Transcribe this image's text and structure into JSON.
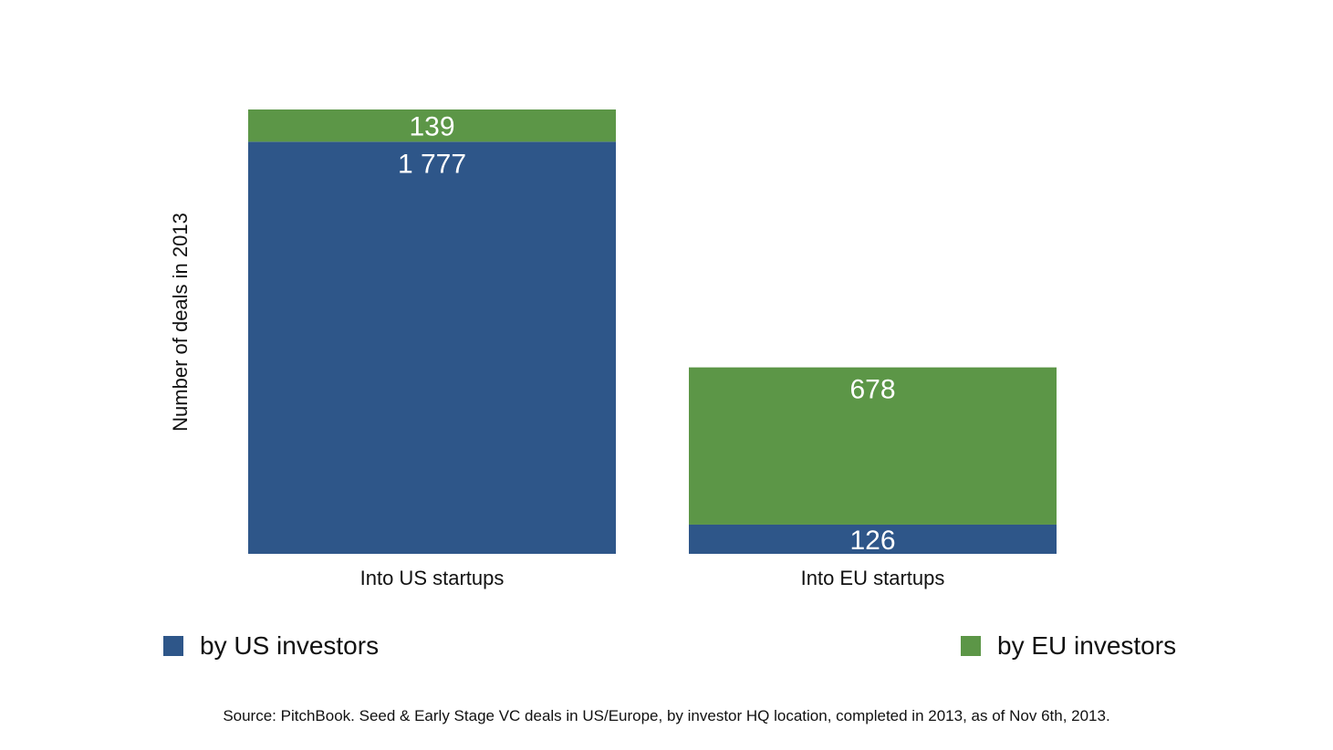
{
  "chart_data": {
    "type": "bar",
    "stacked": true,
    "categories": [
      "Into US startups",
      "Into EU startups"
    ],
    "series": [
      {
        "name": "by US investors",
        "color": "#2e5689",
        "values": [
          1777,
          126
        ],
        "labels": [
          "1 777",
          "126"
        ]
      },
      {
        "name": "by EU investors",
        "color": "#5c9647",
        "values": [
          139,
          678
        ],
        "labels": [
          "139",
          "678"
        ]
      }
    ],
    "title": "",
    "xlabel": "",
    "ylabel": "Number of deals in 2013",
    "ylim": [
      0,
      1916
    ],
    "grid": false,
    "legend_placement": "bottom"
  },
  "source": "Source: PitchBook. Seed & Early Stage VC deals in US/Europe, by investor HQ location, completed in 2013, as of Nov 6th, 2013."
}
